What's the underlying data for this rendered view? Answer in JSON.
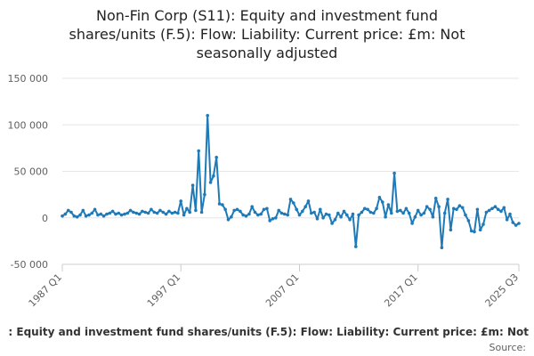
{
  "title_lines": [
    "Non-Fin Corp (S11): Equity and investment fund",
    "shares/units (F.5): Flow: Liability: Current price: £m: Not",
    "seasonally adjusted"
  ],
  "legend_text": ": Equity and investment fund shares/units (F.5): Flow: Liability: Current price: £m: Not",
  "source_label": "Source:",
  "colors": {
    "series": "#1f7ab8",
    "grid": "#e6e6e6",
    "axis": "#cccccc"
  },
  "chart_data": {
    "type": "line",
    "title": "Non-Fin Corp (S11): Equity and investment fund shares/units (F.5): Flow: Liability: Current price: £m: Not seasonally adjusted",
    "xlabel": "",
    "ylabel": "",
    "ylim": [
      -50000,
      150000
    ],
    "yticks": [
      -50000,
      0,
      50000,
      100000,
      150000
    ],
    "ytick_labels": [
      "-50 000",
      "0",
      "50 000",
      "100 000",
      "150 000"
    ],
    "xtick_labels": [
      "1987 Q1",
      "1997 Q1",
      "2007 Q1",
      "2017 Q1",
      "2025 Q3"
    ],
    "xtick_index": [
      0,
      40,
      80,
      120,
      154
    ],
    "grid": true,
    "x_start": "1987 Q1",
    "x_end": "2025 Q3",
    "series": [
      {
        "name": "",
        "values": [
          2000,
          4000,
          8000,
          6000,
          2000,
          1000,
          3000,
          8000,
          2000,
          3000,
          5000,
          9000,
          3000,
          4000,
          2000,
          4000,
          5000,
          7000,
          4000,
          5000,
          3000,
          4000,
          5000,
          8000,
          6000,
          5000,
          4000,
          7000,
          6000,
          5000,
          9000,
          6000,
          5000,
          8000,
          6000,
          4000,
          7000,
          5000,
          6000,
          5000,
          18000,
          3000,
          10000,
          6000,
          35000,
          8000,
          72000,
          6000,
          25000,
          110000,
          38000,
          45000,
          65000,
          15000,
          14000,
          9000,
          -2000,
          1000,
          8000,
          9000,
          7000,
          3000,
          2000,
          4000,
          12000,
          6000,
          3000,
          4000,
          9000,
          10000,
          -3000,
          -1000,
          0,
          8000,
          5000,
          4000,
          3000,
          20000,
          16000,
          9000,
          3000,
          7000,
          12000,
          18000,
          5000,
          6000,
          -1000,
          9000,
          0,
          4000,
          3000,
          -6000,
          -2000,
          5000,
          1000,
          7000,
          3000,
          -2000,
          4000,
          -31000,
          3000,
          6000,
          10000,
          9000,
          6000,
          5000,
          10000,
          22000,
          17000,
          1000,
          14000,
          5000,
          48000,
          7000,
          8000,
          5000,
          10000,
          5000,
          -6000,
          1000,
          8000,
          3000,
          5000,
          12000,
          9000,
          1000,
          21000,
          12000,
          -32000,
          5000,
          20000,
          -13000,
          10000,
          9000,
          13000,
          11000,
          3000,
          -3000,
          -14000,
          -15000,
          9000,
          -13000,
          -7000,
          6000,
          8000,
          10000,
          12000,
          9000,
          7000,
          11000,
          -2000,
          4000,
          -5000,
          -8000,
          -6000
        ]
      }
    ]
  }
}
